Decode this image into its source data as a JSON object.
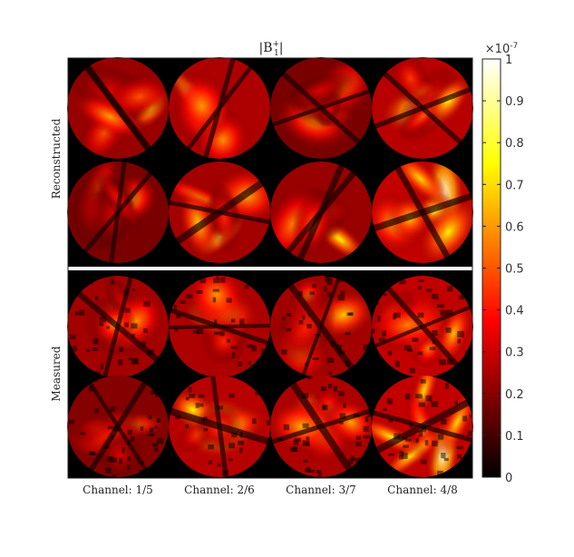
{
  "chart_data": {
    "type": "heatmap",
    "title": "|B1+|",
    "title_main": "|B",
    "title_sub": "1",
    "title_sup": "+",
    "ylabels": [
      "Reconstructed",
      "Measured"
    ],
    "xtick_labels": [
      "Channel: 1/5",
      "Channel: 2/6",
      "Channel: 3/7",
      "Channel: 4/8"
    ],
    "colormap": "hot",
    "colorbar": {
      "range": [
        0,
        1
      ],
      "scale_label": "×10",
      "scale_exp": "-7",
      "ticks": [
        0,
        0.1,
        0.2,
        0.3,
        0.4,
        0.5,
        0.6,
        0.7,
        0.8,
        0.9,
        1
      ],
      "tick_labels": [
        "0",
        "0.1",
        "0.2",
        "0.3",
        "0.4",
        "0.5",
        "0.6",
        "0.7",
        "0.8",
        "0.9",
        "1"
      ]
    },
    "panels": [
      {
        "group": "Reconstructed",
        "channel": 1,
        "peak": 0.75
      },
      {
        "group": "Reconstructed",
        "channel": 2,
        "peak": 0.85
      },
      {
        "group": "Reconstructed",
        "channel": 3,
        "peak": 0.6
      },
      {
        "group": "Reconstructed",
        "channel": 4,
        "peak": 0.9
      },
      {
        "group": "Reconstructed",
        "channel": 5,
        "peak": 0.6
      },
      {
        "group": "Reconstructed",
        "channel": 6,
        "peak": 0.8
      },
      {
        "group": "Reconstructed",
        "channel": 7,
        "peak": 0.75
      },
      {
        "group": "Reconstructed",
        "channel": 8,
        "peak": 0.95
      },
      {
        "group": "Measured",
        "channel": 1,
        "peak": 0.8
      },
      {
        "group": "Measured",
        "channel": 2,
        "peak": 0.85
      },
      {
        "group": "Measured",
        "channel": 3,
        "peak": 0.8
      },
      {
        "group": "Measured",
        "channel": 4,
        "peak": 0.95
      },
      {
        "group": "Measured",
        "channel": 5,
        "peak": 0.65
      },
      {
        "group": "Measured",
        "channel": 6,
        "peak": 0.9
      },
      {
        "group": "Measured",
        "channel": 7,
        "peak": 0.85
      },
      {
        "group": "Measured",
        "channel": 8,
        "peak": 0.95
      }
    ]
  }
}
